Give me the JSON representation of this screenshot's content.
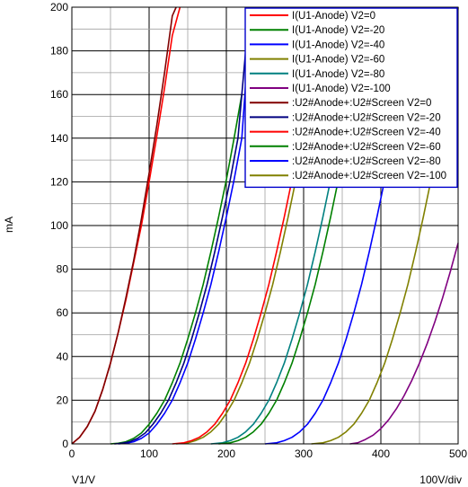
{
  "chart_data": {
    "type": "line",
    "title": "",
    "xlabel": "V1/V",
    "ylabel": "mA",
    "x_scale_note": "100V/div",
    "xlim": [
      0,
      500
    ],
    "ylim": [
      0,
      200
    ],
    "x_ticks": [
      0,
      100,
      200,
      300,
      400,
      500
    ],
    "y_ticks": [
      0,
      20,
      40,
      60,
      80,
      100,
      120,
      140,
      160,
      180,
      200
    ],
    "grid": true,
    "legend_position": "top-right",
    "series": [
      {
        "name": "I(U1-Anode) V2=0",
        "color": "#ff0000",
        "x": [
          0,
          10,
          20,
          30,
          40,
          50,
          60,
          70,
          80,
          90,
          100,
          110,
          120,
          130,
          140
        ],
        "y": [
          0,
          3,
          8,
          15,
          25,
          37,
          51,
          66,
          83,
          100,
          120,
          141,
          163,
          187,
          200
        ]
      },
      {
        "name": "I(U1-Anode) V2=-20",
        "color": "#008000",
        "x": [
          50,
          60,
          70,
          80,
          90,
          100,
          110,
          120,
          130,
          140,
          150,
          160,
          170,
          180,
          190,
          200,
          210,
          220
        ],
        "y": [
          0,
          0.3,
          1,
          2.5,
          5,
          9,
          14,
          20,
          28,
          37,
          48,
          60,
          73,
          88,
          104,
          121,
          140,
          160
        ]
      },
      {
        "name": "I(U1-Anode) V2=-40",
        "color": "#0000ff",
        "x": [
          60,
          70,
          80,
          90,
          100,
          110,
          120,
          130,
          140,
          150,
          160,
          170,
          180,
          190,
          200,
          210,
          220,
          228
        ],
        "y": [
          0,
          0.3,
          1,
          2.5,
          5,
          9,
          14,
          20,
          28,
          37,
          48,
          60,
          73,
          88,
          104,
          121,
          140,
          180
        ]
      },
      {
        "name": "I(U1-Anode) V2=-60",
        "color": "#808000",
        "x": [
          135,
          150,
          160,
          170,
          180,
          190,
          200,
          210,
          220,
          230,
          240,
          250,
          260,
          270,
          280,
          290,
          300,
          310
        ],
        "y": [
          0,
          0.5,
          1.5,
          3,
          5.5,
          9,
          14,
          20,
          28,
          37,
          48,
          60,
          73,
          88,
          104,
          121,
          140,
          160
        ]
      },
      {
        "name": "I(U1-Anode) V2=-80",
        "color": "#008080",
        "x": [
          180,
          195,
          205,
          215,
          225,
          235,
          245,
          255,
          265,
          275,
          285,
          295,
          305,
          315,
          325,
          335,
          345,
          355
        ],
        "y": [
          0,
          0.5,
          1.5,
          3,
          5.5,
          9,
          14,
          20,
          28,
          37,
          48,
          60,
          73,
          88,
          104,
          121,
          140,
          160
        ]
      },
      {
        "name": "I(U1-Anode) V2=-100",
        "color": "#800080",
        "x": [
          360,
          370,
          380,
          390,
          400,
          410,
          420,
          430,
          440,
          450,
          460,
          470,
          480,
          490,
          500
        ],
        "y": [
          0,
          0.5,
          2,
          4,
          7,
          11,
          16,
          22,
          29,
          37,
          46,
          56,
          67,
          79,
          92
        ]
      },
      {
        "name": ":U2#Anode+:U2#Screen V2=0",
        "color": "#800000",
        "x": [
          0,
          10,
          20,
          30,
          40,
          50,
          60,
          70,
          80,
          90,
          100,
          110,
          120,
          130,
          135
        ],
        "y": [
          0,
          3,
          8,
          15,
          25,
          37,
          51,
          67,
          84,
          103,
          124,
          146,
          170,
          196,
          200
        ]
      },
      {
        "name": ":U2#Anode+:U2#Screen V2=-20",
        "color": "#000080",
        "x": [
          55,
          65,
          75,
          85,
          95,
          105,
          115,
          125,
          135,
          145,
          155,
          165,
          175,
          185,
          195,
          205,
          215,
          225
        ],
        "y": [
          0,
          0.3,
          1,
          2.5,
          5,
          9,
          14,
          20,
          28,
          37,
          48,
          60,
          73,
          88,
          104,
          121,
          140,
          180
        ]
      },
      {
        "name": ":U2#Anode+:U2#Screen V2=-40",
        "color": "#ff0000",
        "x": [
          130,
          145,
          155,
          165,
          175,
          185,
          195,
          205,
          215,
          225,
          235,
          245,
          255,
          265,
          275,
          285,
          295,
          305
        ],
        "y": [
          0,
          0.5,
          1.5,
          3,
          5.5,
          9,
          14,
          20,
          28,
          37,
          48,
          60,
          73,
          88,
          104,
          121,
          140,
          160
        ]
      },
      {
        "name": ":U2#Anode+:U2#Screen V2=-60",
        "color": "#008000",
        "x": [
          190,
          205,
          215,
          225,
          235,
          245,
          255,
          265,
          275,
          285,
          295,
          305,
          315,
          325,
          335,
          345,
          355,
          365
        ],
        "y": [
          0,
          0.5,
          1.5,
          3,
          5.5,
          9,
          14,
          20,
          28,
          37,
          48,
          60,
          73,
          88,
          104,
          121,
          140,
          160
        ]
      },
      {
        "name": ":U2#Anode+:U2#Screen V2=-80",
        "color": "#0000ff",
        "x": [
          250,
          265,
          275,
          285,
          295,
          305,
          315,
          325,
          335,
          345,
          355,
          365,
          375,
          385,
          395,
          405,
          415,
          425
        ],
        "y": [
          0,
          0.5,
          1.5,
          3,
          5.5,
          9,
          14,
          20,
          28,
          37,
          48,
          60,
          73,
          88,
          104,
          121,
          140,
          160
        ]
      },
      {
        "name": ":U2#Anode+:U2#Screen V2=-100",
        "color": "#808000",
        "x": [
          310,
          325,
          335,
          345,
          355,
          365,
          375,
          385,
          395,
          405,
          415,
          425,
          435,
          445,
          455,
          465,
          475,
          485,
          495,
          500
        ],
        "y": [
          0,
          0.5,
          1.5,
          3,
          5.5,
          9,
          14,
          20,
          28,
          37,
          48,
          60,
          73,
          88,
          104,
          121,
          140,
          160,
          180,
          200
        ]
      }
    ]
  }
}
